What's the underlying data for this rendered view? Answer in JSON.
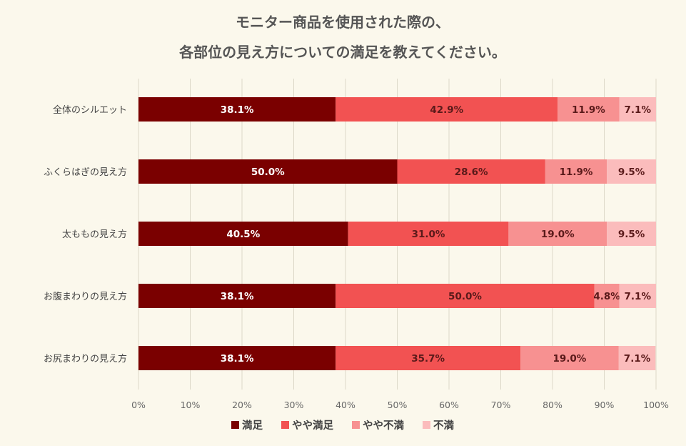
{
  "chart_data": {
    "type": "bar",
    "orientation": "horizontal",
    "stacked": true,
    "title_lines": [
      "モニター商品を使用された際の、",
      "各部位の見え方についての満足を教えてください。"
    ],
    "categories": [
      "全体のシルエット",
      "ふくらはぎの見え方",
      "太ももの見え方",
      "お腹まわりの見え方",
      "お尻まわりの見え方"
    ],
    "series": [
      {
        "name": "満足",
        "color": "#7a0000",
        "label_color": "#ffffff",
        "values": [
          38.1,
          50.0,
          40.5,
          38.1,
          38.1
        ]
      },
      {
        "name": "やや満足",
        "color": "#f25252",
        "label_color": "#5a1a1a",
        "values": [
          42.9,
          28.6,
          31.0,
          50.0,
          35.7
        ]
      },
      {
        "name": "やや不満",
        "color": "#f79191",
        "label_color": "#5a1a1a",
        "values": [
          11.9,
          11.9,
          19.0,
          4.8,
          19.0
        ]
      },
      {
        "name": "不満",
        "color": "#fbbcbc",
        "label_color": "#5a1a1a",
        "values": [
          7.1,
          9.5,
          9.5,
          7.1,
          7.1
        ]
      }
    ],
    "xlim": [
      0,
      100
    ],
    "x_ticks": [
      "0%",
      "10%",
      "20%",
      "30%",
      "40%",
      "50%",
      "60%",
      "70%",
      "80%",
      "90%",
      "100%"
    ],
    "value_suffix": "%",
    "grid": true,
    "legend_position": "bottom"
  }
}
